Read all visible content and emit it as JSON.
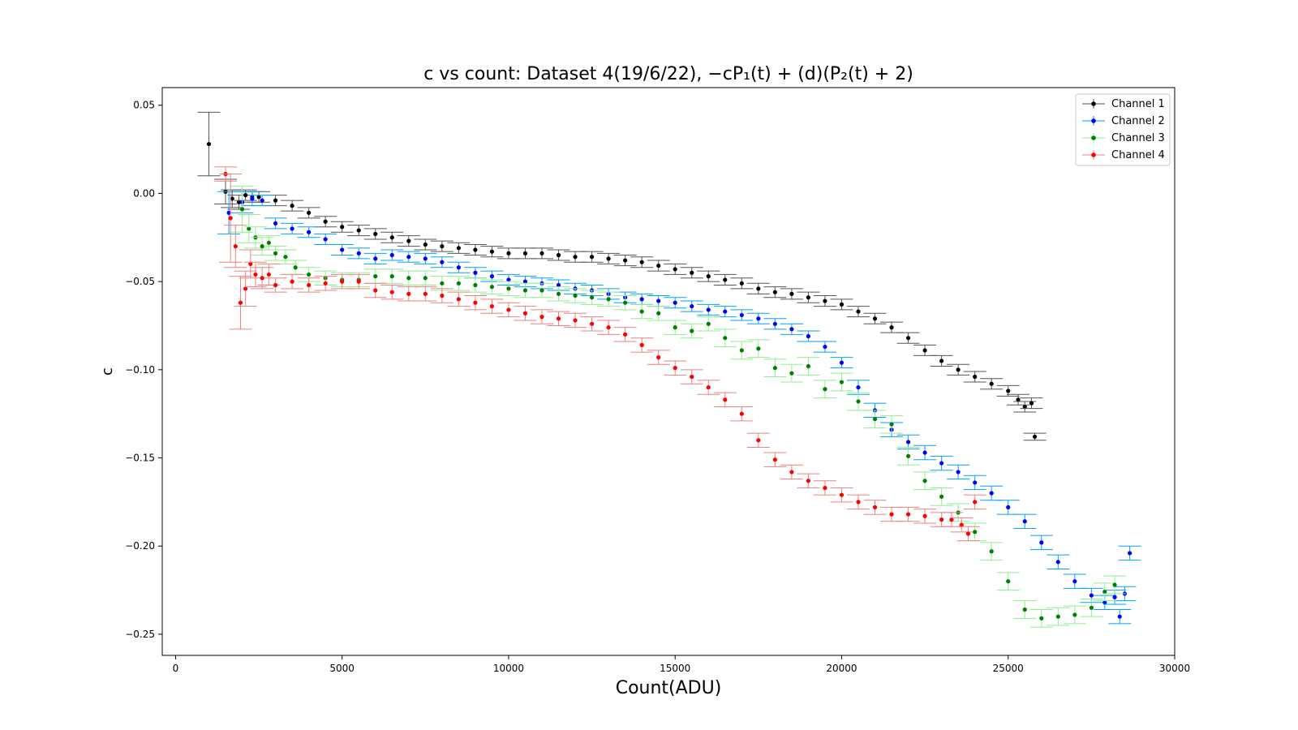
{
  "chart_data": {
    "type": "scatter",
    "title": "c vs count: Dataset 4(19/6/22),  −cP₁(t) + (d)(P₂(t) + 2)",
    "xlabel": "Count(ADU)",
    "ylabel": "c",
    "xlim": [
      -400,
      30000
    ],
    "ylim": [
      -0.262,
      0.06
    ],
    "xticks": [
      0,
      5000,
      10000,
      15000,
      20000,
      25000,
      30000
    ],
    "yticks": [
      0.05,
      0.0,
      -0.05,
      -0.1,
      -0.15,
      -0.2,
      -0.25
    ],
    "ytick_labels": [
      "0.05",
      "0.00",
      "−0.05",
      "−0.10",
      "−0.15",
      "−0.20",
      "−0.25"
    ],
    "grid": false,
    "legend_position": "top-right",
    "series": [
      {
        "name": "Channel 1",
        "color": "#000000",
        "err_color": "#555555",
        "x": [
          1000,
          1500,
          1700,
          1900,
          2100,
          2300,
          2500,
          3000,
          3500,
          4000,
          4500,
          5000,
          5500,
          6000,
          6500,
          7000,
          7500,
          8000,
          8500,
          9000,
          9500,
          10000,
          10500,
          11000,
          11500,
          12000,
          12500,
          13000,
          13500,
          14000,
          14500,
          15000,
          15500,
          16000,
          16500,
          17000,
          17500,
          18000,
          18500,
          19000,
          19500,
          20000,
          20500,
          21000,
          21500,
          22000,
          22500,
          23000,
          23500,
          24000,
          24500,
          25000,
          25300,
          25500,
          25700,
          25800
        ],
        "y": [
          0.028,
          0.001,
          -0.003,
          -0.005,
          -0.001,
          -0.002,
          -0.002,
          -0.004,
          -0.007,
          -0.011,
          -0.016,
          -0.019,
          -0.021,
          -0.023,
          -0.025,
          -0.027,
          -0.029,
          -0.03,
          -0.031,
          -0.032,
          -0.033,
          -0.034,
          -0.034,
          -0.034,
          -0.035,
          -0.036,
          -0.036,
          -0.037,
          -0.038,
          -0.039,
          -0.041,
          -0.043,
          -0.045,
          -0.047,
          -0.049,
          -0.051,
          -0.054,
          -0.056,
          -0.057,
          -0.059,
          -0.061,
          -0.063,
          -0.067,
          -0.071,
          -0.076,
          -0.082,
          -0.089,
          -0.095,
          -0.1,
          -0.104,
          -0.108,
          -0.112,
          -0.117,
          -0.121,
          -0.119,
          -0.138
        ],
        "yerr": [
          0.018,
          0.007,
          0.005,
          0.004,
          0.003,
          0.003,
          0.003,
          0.003,
          0.003,
          0.003,
          0.003,
          0.003,
          0.003,
          0.003,
          0.003,
          0.003,
          0.003,
          0.003,
          0.003,
          0.003,
          0.003,
          0.003,
          0.003,
          0.003,
          0.003,
          0.003,
          0.003,
          0.003,
          0.003,
          0.003,
          0.003,
          0.003,
          0.003,
          0.003,
          0.003,
          0.003,
          0.003,
          0.003,
          0.003,
          0.003,
          0.003,
          0.003,
          0.003,
          0.003,
          0.003,
          0.003,
          0.003,
          0.003,
          0.003,
          0.003,
          0.003,
          0.003,
          0.003,
          0.003,
          0.003,
          0.002
        ]
      },
      {
        "name": "Channel 2",
        "color": "#0000ff",
        "err_color": "#00a2ff",
        "x": [
          1600,
          2000,
          2300,
          2600,
          3000,
          3500,
          4000,
          4500,
          5000,
          5500,
          6000,
          6500,
          7000,
          7500,
          8000,
          8500,
          9000,
          9500,
          10000,
          10500,
          11000,
          11500,
          12000,
          12500,
          13000,
          13500,
          14000,
          14500,
          15000,
          15500,
          16000,
          16500,
          17000,
          17500,
          18000,
          18500,
          19000,
          19500,
          20000,
          20500,
          21000,
          21500,
          22000,
          22500,
          23000,
          23500,
          24000,
          24500,
          25000,
          25500,
          26000,
          26500,
          27000,
          27500,
          27900,
          28200,
          28350,
          28500,
          28650
        ],
        "y": [
          -0.011,
          -0.005,
          -0.003,
          -0.004,
          -0.017,
          -0.02,
          -0.022,
          -0.026,
          -0.032,
          -0.034,
          -0.037,
          -0.035,
          -0.036,
          -0.037,
          -0.039,
          -0.042,
          -0.045,
          -0.047,
          -0.049,
          -0.05,
          -0.051,
          -0.052,
          -0.054,
          -0.055,
          -0.057,
          -0.059,
          -0.06,
          -0.061,
          -0.062,
          -0.064,
          -0.066,
          -0.067,
          -0.069,
          -0.071,
          -0.074,
          -0.077,
          -0.081,
          -0.087,
          -0.096,
          -0.11,
          -0.123,
          -0.134,
          -0.141,
          -0.147,
          -0.153,
          -0.158,
          -0.164,
          -0.17,
          -0.178,
          -0.186,
          -0.198,
          -0.209,
          -0.22,
          -0.228,
          -0.232,
          -0.229,
          -0.24,
          -0.227,
          -0.204
        ],
        "yerr": [
          0.012,
          0.006,
          0.004,
          0.003,
          0.003,
          0.003,
          0.003,
          0.003,
          0.003,
          0.003,
          0.003,
          0.003,
          0.003,
          0.003,
          0.003,
          0.003,
          0.003,
          0.003,
          0.003,
          0.003,
          0.003,
          0.003,
          0.003,
          0.003,
          0.003,
          0.003,
          0.003,
          0.003,
          0.003,
          0.003,
          0.003,
          0.003,
          0.003,
          0.003,
          0.003,
          0.003,
          0.003,
          0.003,
          0.003,
          0.004,
          0.004,
          0.004,
          0.004,
          0.004,
          0.004,
          0.004,
          0.004,
          0.004,
          0.004,
          0.004,
          0.004,
          0.004,
          0.004,
          0.004,
          0.004,
          0.004,
          0.004,
          0.004,
          0.004
        ]
      },
      {
        "name": "Channel 3",
        "color": "#008000",
        "err_color": "#90ee90",
        "x": [
          2000,
          2200,
          2400,
          2600,
          2800,
          3000,
          3300,
          3600,
          4000,
          4500,
          5000,
          5500,
          6000,
          6500,
          7000,
          7500,
          8000,
          8500,
          9000,
          9500,
          10000,
          10500,
          11000,
          11500,
          12000,
          12500,
          13000,
          13500,
          14000,
          14500,
          15000,
          15500,
          16000,
          16500,
          17000,
          17500,
          18000,
          18500,
          19000,
          19500,
          20000,
          20500,
          21000,
          21500,
          22000,
          22500,
          23000,
          23500,
          24000,
          24500,
          25000,
          25500,
          26000,
          26500,
          27000,
          27500,
          27900,
          28200
        ],
        "y": [
          -0.009,
          -0.02,
          -0.025,
          -0.03,
          -0.028,
          -0.034,
          -0.036,
          -0.042,
          -0.046,
          -0.048,
          -0.049,
          -0.049,
          -0.047,
          -0.047,
          -0.048,
          -0.048,
          -0.051,
          -0.051,
          -0.052,
          -0.053,
          -0.054,
          -0.055,
          -0.055,
          -0.057,
          -0.058,
          -0.059,
          -0.06,
          -0.062,
          -0.067,
          -0.068,
          -0.076,
          -0.078,
          -0.074,
          -0.082,
          -0.089,
          -0.088,
          -0.099,
          -0.102,
          -0.098,
          -0.111,
          -0.107,
          -0.118,
          -0.128,
          -0.131,
          -0.149,
          -0.163,
          -0.172,
          -0.181,
          -0.192,
          -0.203,
          -0.22,
          -0.236,
          -0.241,
          -0.24,
          -0.239,
          -0.235,
          -0.226,
          -0.222
        ],
        "yerr": [
          0.013,
          0.008,
          0.006,
          0.005,
          0.004,
          0.004,
          0.004,
          0.004,
          0.004,
          0.004,
          0.004,
          0.004,
          0.004,
          0.004,
          0.004,
          0.004,
          0.004,
          0.004,
          0.004,
          0.004,
          0.004,
          0.004,
          0.004,
          0.004,
          0.004,
          0.004,
          0.004,
          0.004,
          0.004,
          0.004,
          0.004,
          0.004,
          0.004,
          0.005,
          0.005,
          0.005,
          0.005,
          0.005,
          0.005,
          0.005,
          0.005,
          0.005,
          0.005,
          0.005,
          0.005,
          0.005,
          0.005,
          0.005,
          0.005,
          0.005,
          0.005,
          0.005,
          0.005,
          0.005,
          0.005,
          0.005,
          0.005,
          0.005
        ]
      },
      {
        "name": "Channel 4",
        "color": "#ff0000",
        "err_color": "#f08080",
        "x": [
          1500,
          1650,
          1800,
          1950,
          2100,
          2250,
          2400,
          2600,
          2800,
          3000,
          3500,
          4000,
          4500,
          5000,
          5500,
          6000,
          6500,
          7000,
          7500,
          8000,
          8500,
          9000,
          9500,
          10000,
          10500,
          11000,
          11500,
          12000,
          12500,
          13000,
          13500,
          14000,
          14500,
          15000,
          15500,
          16000,
          16500,
          17000,
          17500,
          18000,
          18500,
          19000,
          19500,
          20000,
          20500,
          21000,
          21500,
          22000,
          22500,
          23000,
          23300,
          23600,
          23800,
          24000
        ],
        "y": [
          0.011,
          -0.014,
          -0.03,
          -0.062,
          -0.054,
          -0.04,
          -0.046,
          -0.048,
          -0.046,
          -0.052,
          -0.05,
          -0.052,
          -0.051,
          -0.05,
          -0.05,
          -0.055,
          -0.056,
          -0.057,
          -0.057,
          -0.058,
          -0.06,
          -0.062,
          -0.064,
          -0.066,
          -0.068,
          -0.07,
          -0.071,
          -0.072,
          -0.074,
          -0.076,
          -0.08,
          -0.086,
          -0.093,
          -0.099,
          -0.104,
          -0.11,
          -0.117,
          -0.125,
          -0.14,
          -0.151,
          -0.158,
          -0.163,
          -0.167,
          -0.171,
          -0.175,
          -0.178,
          -0.182,
          -0.182,
          -0.183,
          -0.185,
          -0.185,
          -0.188,
          -0.193,
          -0.175
        ],
        "yerr": [
          0.004,
          0.025,
          0.012,
          0.015,
          0.01,
          0.008,
          0.007,
          0.006,
          0.006,
          0.004,
          0.004,
          0.004,
          0.004,
          0.004,
          0.004,
          0.004,
          0.004,
          0.004,
          0.004,
          0.004,
          0.004,
          0.004,
          0.004,
          0.004,
          0.004,
          0.004,
          0.004,
          0.004,
          0.004,
          0.004,
          0.004,
          0.004,
          0.004,
          0.004,
          0.004,
          0.004,
          0.004,
          0.004,
          0.004,
          0.004,
          0.004,
          0.004,
          0.004,
          0.004,
          0.004,
          0.004,
          0.004,
          0.004,
          0.004,
          0.004,
          0.004,
          0.004,
          0.004,
          0.004
        ]
      }
    ]
  }
}
